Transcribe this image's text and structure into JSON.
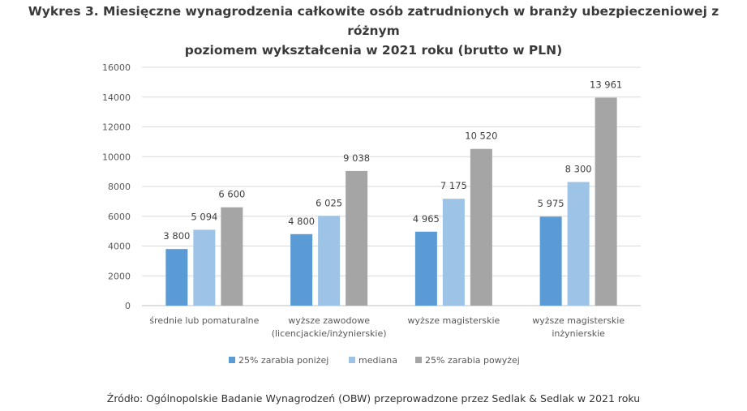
{
  "title_line1": "Wykres 3. Miesięczne wynagrodzenia całkowite osób zatrudnionych w branży ubezpieczeniowej z różnym",
  "title_line2": "poziomem wykształcenia w 2021 roku (brutto w PLN)",
  "source": "Źródło: Ogólnopolskie Badanie Wynagrodzeń (OBW) przeprowadzone przez Sedlak & Sedlak w 2021 roku",
  "chart_data": {
    "type": "bar",
    "title": "Wykres 3. Miesięczne wynagrodzenia całkowite osób zatrudnionych w branży ubezpieczeniowej z różnym poziomem wykształcenia w 2021 roku (brutto w PLN)",
    "xlabel": "",
    "ylabel": "",
    "ylim": [
      0,
      16000
    ],
    "yticks": [
      "0",
      "2000",
      "4000",
      "6000",
      "8000",
      "10000",
      "12000",
      "14000",
      "16000"
    ],
    "categories": [
      [
        "średnie lub pomaturalne"
      ],
      [
        "wyższe zawodowe",
        "(licencjackie/inżynierskie)"
      ],
      [
        "wyższe magisterskie"
      ],
      [
        "wyższe magisterskie",
        "inżynierskie"
      ]
    ],
    "series": [
      {
        "name": "25% zarabia poniżej",
        "color": "#5b9bd5",
        "values": [
          3800,
          4800,
          4965,
          5975
        ],
        "labels": [
          "3 800",
          "4 800",
          "4 965",
          "5 975"
        ]
      },
      {
        "name": "mediana",
        "color": "#9dc3e6",
        "values": [
          5094,
          6025,
          7175,
          8300
        ],
        "labels": [
          "5 094",
          "6 025",
          "7 175",
          "8 300"
        ]
      },
      {
        "name": "25% zarabia powyżej",
        "color": "#a5a5a5",
        "values": [
          6600,
          9038,
          10520,
          13961
        ],
        "labels": [
          "6 600",
          "9 038",
          "10 520",
          "13 961"
        ]
      }
    ],
    "grid": true,
    "gridColor": "#d9d9d9",
    "legend": "bottom-center"
  }
}
